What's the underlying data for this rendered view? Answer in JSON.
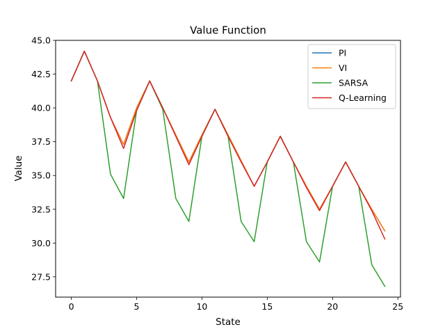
{
  "chart_data": {
    "type": "line",
    "title": "Value Function",
    "xlabel": "State",
    "ylabel": "Value",
    "xlim": [
      -1.2,
      25.2
    ],
    "ylim": [
      26.0,
      45.0
    ],
    "xticks": [
      0,
      5,
      10,
      15,
      20,
      25
    ],
    "yticks": [
      27.5,
      30.0,
      32.5,
      35.0,
      37.5,
      40.0,
      42.5,
      45.0
    ],
    "xtick_labels": [
      "0",
      "5",
      "10",
      "15",
      "20",
      "25"
    ],
    "ytick_labels": [
      "27.5",
      "30.0",
      "32.5",
      "35.0",
      "37.5",
      "40.0",
      "42.5",
      "45.0"
    ],
    "grid": false,
    "legend_position": "top-right",
    "x": [
      0,
      1,
      2,
      3,
      4,
      5,
      6,
      7,
      8,
      9,
      10,
      11,
      12,
      13,
      14,
      15,
      16,
      17,
      18,
      19,
      20,
      21,
      22,
      23,
      24
    ],
    "series": [
      {
        "name": "PI",
        "color": "#1f77b4",
        "values": [
          42.0,
          44.2,
          42.0,
          39.3,
          37.3,
          40.0,
          42.0,
          40.0,
          38.0,
          36.0,
          38.0,
          39.9,
          38.0,
          36.1,
          34.2,
          36.0,
          37.9,
          36.0,
          34.2,
          32.5,
          34.2,
          36.0,
          34.2,
          32.5,
          30.9
        ]
      },
      {
        "name": "VI",
        "color": "#ff7f0e",
        "values": [
          42.0,
          44.2,
          42.0,
          39.3,
          37.3,
          40.0,
          42.0,
          40.0,
          38.0,
          36.0,
          38.0,
          39.9,
          38.0,
          36.1,
          34.2,
          36.0,
          37.9,
          36.0,
          34.2,
          32.5,
          34.2,
          36.0,
          34.2,
          32.5,
          30.9
        ]
      },
      {
        "name": "SARSA",
        "color": "#2ca02c",
        "values": [
          42.0,
          44.2,
          42.0,
          35.1,
          33.3,
          39.8,
          42.0,
          39.9,
          33.3,
          31.6,
          37.9,
          39.9,
          37.9,
          31.6,
          30.1,
          36.0,
          37.9,
          36.0,
          30.1,
          28.6,
          34.2,
          36.0,
          34.2,
          28.4,
          26.8
        ]
      },
      {
        "name": "Q-Learning",
        "color": "#d62728",
        "values": [
          42.0,
          44.2,
          42.0,
          39.3,
          37.0,
          39.8,
          42.0,
          40.0,
          37.9,
          35.8,
          37.9,
          39.9,
          37.9,
          36.0,
          34.2,
          36.0,
          37.9,
          36.0,
          34.1,
          32.4,
          34.2,
          36.0,
          34.2,
          32.4,
          30.3
        ]
      }
    ]
  }
}
